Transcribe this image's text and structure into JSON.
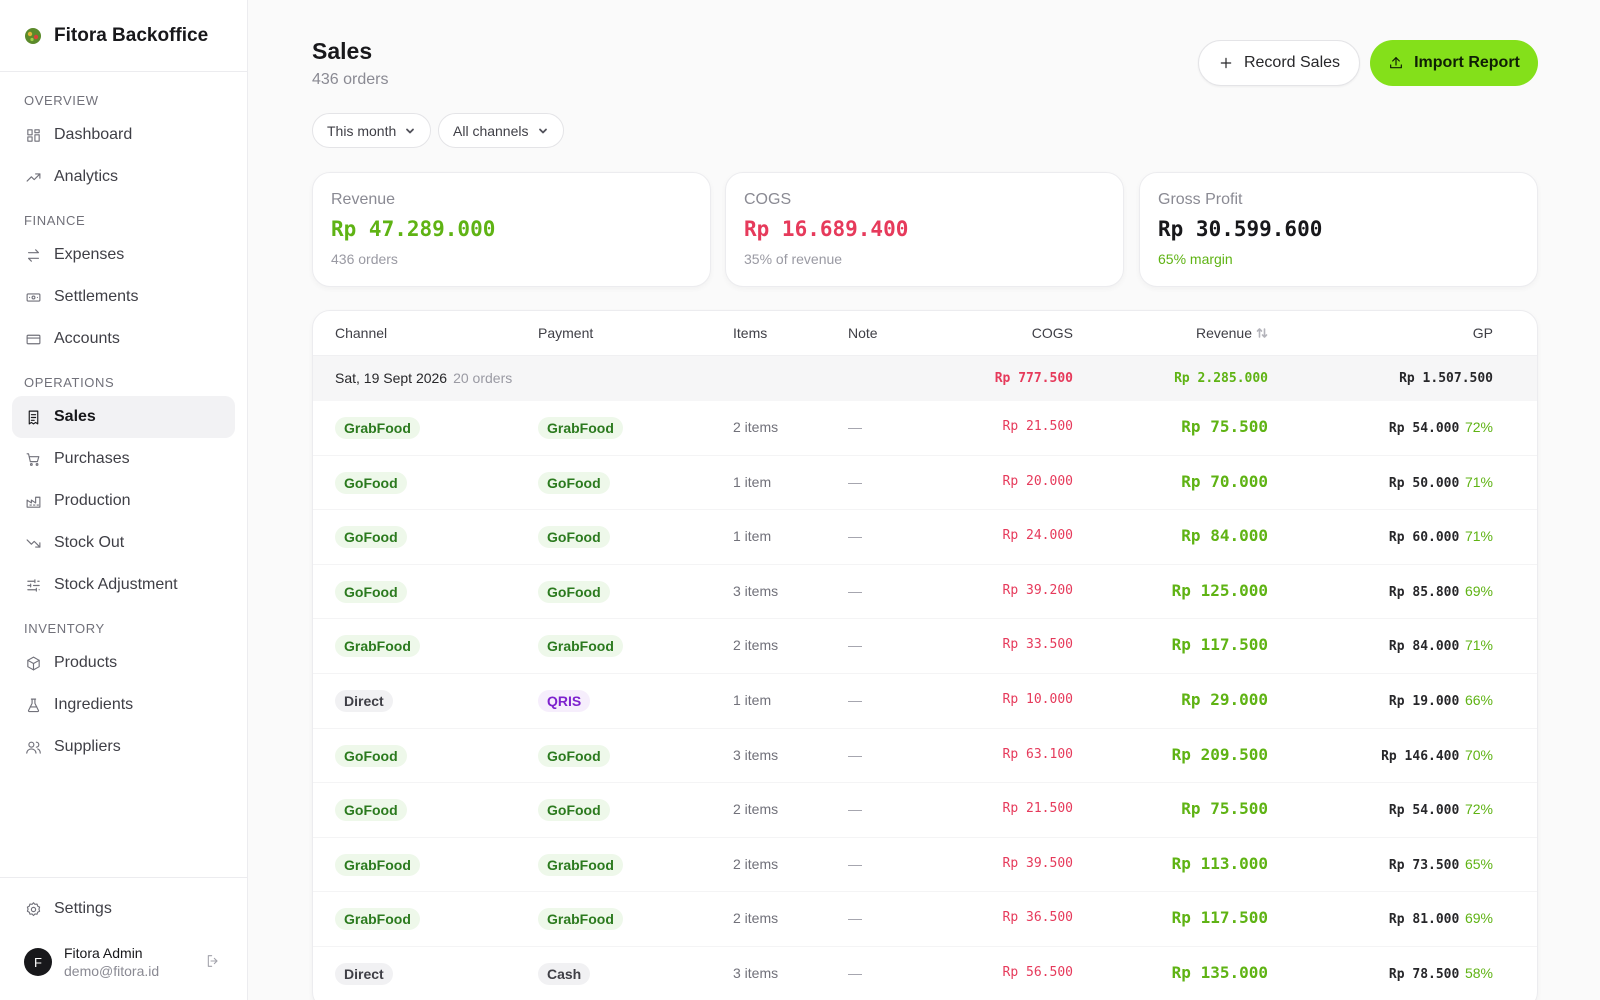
{
  "brand": {
    "name": "Fitora Backoffice"
  },
  "sidebar": {
    "sections": [
      {
        "title": "OVERVIEW",
        "items": [
          {
            "label": "Dashboard",
            "icon": "dashboard-icon"
          },
          {
            "label": "Analytics",
            "icon": "trend-icon"
          }
        ]
      },
      {
        "title": "FINANCE",
        "items": [
          {
            "label": "Expenses",
            "icon": "exchange-icon"
          },
          {
            "label": "Settlements",
            "icon": "banknote-icon"
          },
          {
            "label": "Accounts",
            "icon": "card-icon"
          }
        ]
      },
      {
        "title": "OPERATIONS",
        "items": [
          {
            "label": "Sales",
            "icon": "receipt-icon",
            "active": true
          },
          {
            "label": "Purchases",
            "icon": "cart-icon"
          },
          {
            "label": "Production",
            "icon": "factory-icon"
          },
          {
            "label": "Stock Out",
            "icon": "trend-down-icon"
          },
          {
            "label": "Stock Adjustment",
            "icon": "sliders-icon"
          }
        ]
      },
      {
        "title": "INVENTORY",
        "items": [
          {
            "label": "Products",
            "icon": "box-icon"
          },
          {
            "label": "Ingredients",
            "icon": "flask-icon"
          },
          {
            "label": "Suppliers",
            "icon": "users-icon"
          }
        ]
      }
    ],
    "settings_label": "Settings",
    "user": {
      "initial": "F",
      "name": "Fitora Admin",
      "email": "demo@fitora.id"
    }
  },
  "header": {
    "title": "Sales",
    "subtitle": "436 orders",
    "record_label": "Record Sales",
    "import_label": "Import Report"
  },
  "filters": {
    "period": "This month",
    "channel": "All channels"
  },
  "cards": [
    {
      "label": "Revenue",
      "value": "Rp 47.289.000",
      "sub": "436 orders",
      "color": "#5fb314",
      "sub_color": "#9a9aa3"
    },
    {
      "label": "COGS",
      "value": "Rp 16.689.400",
      "sub": "35% of revenue",
      "color": "#e63a5b",
      "sub_color": "#9a9aa3"
    },
    {
      "label": "Gross Profit",
      "value": "Rp 30.599.600",
      "sub": "65% margin",
      "color": "#18181b",
      "sub_color": "#5fb314"
    }
  ],
  "table": {
    "columns": {
      "channel": "Channel",
      "payment": "Payment",
      "items": "Items",
      "note": "Note",
      "cogs": "COGS",
      "revenue": "Revenue",
      "gp": "GP"
    },
    "group": {
      "date": "Sat, 19 Sept 2026",
      "count": "20 orders",
      "cogs": "Rp 777.500",
      "revenue": "Rp 2.285.000",
      "gp": "Rp 1.507.500"
    },
    "rows": [
      {
        "channel": "GrabFood",
        "payment": "GrabFood",
        "items": "2 items",
        "note": "—",
        "cogs": "Rp 21.500",
        "revenue": "Rp 75.500",
        "gp": "Rp 54.000",
        "pct": "72%"
      },
      {
        "channel": "GoFood",
        "payment": "GoFood",
        "items": "1 item",
        "note": "—",
        "cogs": "Rp 20.000",
        "revenue": "Rp 70.000",
        "gp": "Rp 50.000",
        "pct": "71%"
      },
      {
        "channel": "GoFood",
        "payment": "GoFood",
        "items": "1 item",
        "note": "—",
        "cogs": "Rp 24.000",
        "revenue": "Rp 84.000",
        "gp": "Rp 60.000",
        "pct": "71%"
      },
      {
        "channel": "GoFood",
        "payment": "GoFood",
        "items": "3 items",
        "note": "—",
        "cogs": "Rp 39.200",
        "revenue": "Rp 125.000",
        "gp": "Rp 85.800",
        "pct": "69%"
      },
      {
        "channel": "GrabFood",
        "payment": "GrabFood",
        "items": "2 items",
        "note": "—",
        "cogs": "Rp 33.500",
        "revenue": "Rp 117.500",
        "gp": "Rp 84.000",
        "pct": "71%"
      },
      {
        "channel": "Direct",
        "payment": "QRIS",
        "items": "1 item",
        "note": "—",
        "cogs": "Rp 10.000",
        "revenue": "Rp 29.000",
        "gp": "Rp 19.000",
        "pct": "66%"
      },
      {
        "channel": "GoFood",
        "payment": "GoFood",
        "items": "3 items",
        "note": "—",
        "cogs": "Rp 63.100",
        "revenue": "Rp 209.500",
        "gp": "Rp 146.400",
        "pct": "70%"
      },
      {
        "channel": "GoFood",
        "payment": "GoFood",
        "items": "2 items",
        "note": "—",
        "cogs": "Rp 21.500",
        "revenue": "Rp 75.500",
        "gp": "Rp 54.000",
        "pct": "72%"
      },
      {
        "channel": "GrabFood",
        "payment": "GrabFood",
        "items": "2 items",
        "note": "—",
        "cogs": "Rp 39.500",
        "revenue": "Rp 113.000",
        "gp": "Rp 73.500",
        "pct": "65%"
      },
      {
        "channel": "GrabFood",
        "payment": "GrabFood",
        "items": "2 items",
        "note": "—",
        "cogs": "Rp 36.500",
        "revenue": "Rp 117.500",
        "gp": "Rp 81.000",
        "pct": "69%"
      },
      {
        "channel": "Direct",
        "payment": "Cash",
        "items": "3 items",
        "note": "—",
        "cogs": "Rp 56.500",
        "revenue": "Rp 135.000",
        "gp": "Rp 78.500",
        "pct": "58%"
      }
    ]
  }
}
